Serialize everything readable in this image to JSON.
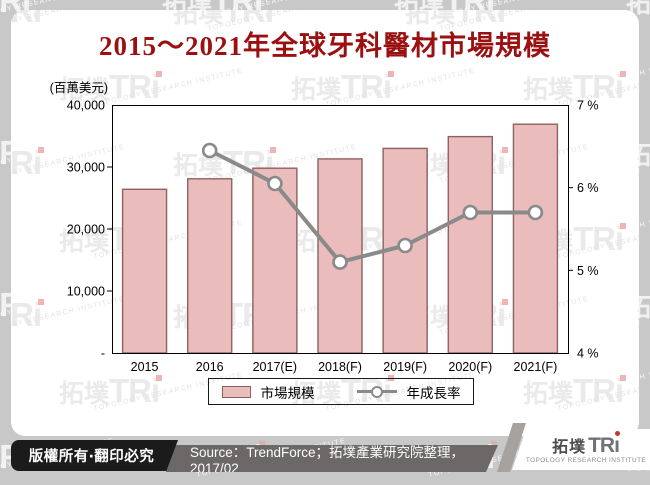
{
  "title": "2015～2021年全球牙科醫材市場規模",
  "colors": {
    "title": "#9B1111",
    "bar_fill": "#EABCBC",
    "bar_border": "#8F6060",
    "line": "#8A8A8A",
    "marker_fill": "#FFFFFF",
    "canvas_bg": "#C8C8C8",
    "panel_bg": "#FFFFFF",
    "copyright_bg": "#1B1B1B",
    "source_bar_bg": "#6B6867"
  },
  "chart_data": {
    "type": "bar+line combo",
    "categories": [
      "2015",
      "2016",
      "2017(E)",
      "2018(F)",
      "2019(F)",
      "2020(F)",
      "2021(F)"
    ],
    "series": [
      {
        "name": "市場規模",
        "type": "bar",
        "axis": "left",
        "unit": "百萬美元",
        "values": [
          26400,
          28100,
          29800,
          31300,
          33000,
          34900,
          36900
        ]
      },
      {
        "name": "年成長率",
        "type": "line",
        "axis": "right",
        "unit": "%",
        "values": [
          null,
          6.45,
          6.05,
          5.1,
          5.3,
          5.7,
          5.7
        ]
      }
    ],
    "left_axis": {
      "title": "(百萬美元)",
      "min": 0,
      "max": 40000,
      "ticks": [
        {
          "value": 40000,
          "label": "40,000"
        },
        {
          "value": 30000,
          "label": "30,000"
        },
        {
          "value": 20000,
          "label": "20,000"
        },
        {
          "value": 10000,
          "label": "10,000"
        },
        {
          "value": 0,
          "label": "-"
        }
      ]
    },
    "right_axis": {
      "min": 4,
      "max": 7,
      "ticks": [
        {
          "value": 7,
          "label": "7 %"
        },
        {
          "value": 6,
          "label": "6 %"
        },
        {
          "value": 5,
          "label": "5 %"
        },
        {
          "value": 4,
          "label": "4 %"
        }
      ]
    },
    "grid": false,
    "legend_position": "bottom-center"
  },
  "legend": {
    "items": [
      {
        "label": "市場規模",
        "swatch": "bar"
      },
      {
        "label": "年成長率",
        "swatch": "line"
      }
    ]
  },
  "watermark": {
    "cjk": "拓墣",
    "latin": "TRi",
    "caption": "TOPOLOGY RESEARCH INSTITUTE"
  },
  "footer": {
    "copyright": "版權所有‧翻印必究",
    "source": "Source：TrendForce；拓墣產業研究院整理，2017/02",
    "logo": {
      "cjk": "拓墣",
      "latin_t": "TR",
      "latin_i": "ı",
      "caption": "TOPOLOGY RESEARCH INSTITUTE"
    }
  }
}
